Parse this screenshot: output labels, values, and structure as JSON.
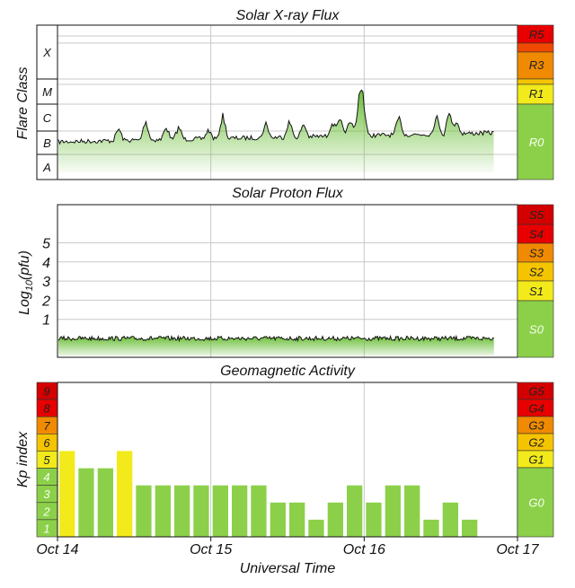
{
  "colors": {
    "green": "#8cd04a",
    "yellow": "#f2ea1a",
    "amber": "#f5c400",
    "orange": "#f08a00",
    "orange_red": "#f04a00",
    "red": "#e80000",
    "dark_red": "#d40000",
    "flux_line": "#111111",
    "grid": "#c8c8c8"
  },
  "xray_panel": {
    "title": "Solar X-ray Flux",
    "ylabel": "Flare Class",
    "class_labels": [
      "X",
      "M",
      "C",
      "B",
      "A"
    ],
    "scale": [
      {
        "label": "R5",
        "color": "#e80000"
      },
      {
        "label": "R3",
        "color": "#f08a00"
      },
      {
        "label": "R1",
        "color": "#f2ea1a"
      },
      {
        "label": "R0",
        "color": "#8cd04a"
      }
    ]
  },
  "proton_panel": {
    "title": "Solar Proton Flux",
    "ylabel_main": "Log",
    "ylabel_sub": "10",
    "ylabel_unit": "(pfu)",
    "tick_labels": [
      "5",
      "4",
      "3",
      "2",
      "1"
    ],
    "scale": [
      {
        "label": "S5",
        "color": "#d40000"
      },
      {
        "label": "S4",
        "color": "#e80000"
      },
      {
        "label": "S3",
        "color": "#f08a00"
      },
      {
        "label": "S2",
        "color": "#f5c400"
      },
      {
        "label": "S1",
        "color": "#f2ea1a"
      },
      {
        "label": "S0",
        "color": "#8cd04a"
      }
    ]
  },
  "kp_panel": {
    "title": "Geomagnetic Activity",
    "ylabel": "Kp index",
    "level_labels": [
      "9",
      "8",
      "7",
      "6",
      "5",
      "4",
      "3",
      "2",
      "1"
    ],
    "level_colors": [
      "#d40000",
      "#e80000",
      "#f08a00",
      "#f5c400",
      "#f2ea1a",
      "#8cd04a",
      "#8cd04a",
      "#8cd04a",
      "#8cd04a"
    ],
    "scale": [
      {
        "label": "G5",
        "color": "#d40000"
      },
      {
        "label": "G4",
        "color": "#e80000"
      },
      {
        "label": "G3",
        "color": "#f08a00"
      },
      {
        "label": "G2",
        "color": "#f5c400"
      },
      {
        "label": "G1",
        "color": "#f2ea1a"
      },
      {
        "label": "G0",
        "color": "#8cd04a"
      }
    ]
  },
  "x_axis": {
    "ticks": [
      "Oct 14",
      "Oct 15",
      "Oct 16",
      "Oct 17"
    ],
    "xlabel": "Universal Time"
  },
  "chart_data": [
    {
      "type": "area",
      "title": "Solar X-ray Flux",
      "ylabel": "Flare Class",
      "xlim": [
        "Oct 14",
        "Oct 17"
      ],
      "x_days": [
        0.0,
        0.25,
        0.5,
        0.75,
        1.0,
        1.25,
        1.5,
        1.75,
        2.0,
        2.25,
        2.5,
        2.85
      ],
      "y_class": [
        "B",
        "B",
        "B",
        "B",
        "B",
        "B",
        "B",
        "B",
        "C",
        "B",
        "B",
        "B"
      ]
    },
    {
      "type": "area",
      "title": "Solar Proton Flux",
      "ylabel": "Log10(pfu)",
      "xlim": [
        "Oct 14",
        "Oct 17"
      ],
      "y_range": [
        -1,
        6
      ],
      "x_days": [
        0.0,
        0.5,
        1.0,
        1.5,
        2.0,
        2.5,
        2.85
      ],
      "values": [
        0.0,
        0.0,
        0.0,
        0.0,
        0.0,
        0.0,
        0.0
      ]
    },
    {
      "type": "bar",
      "title": "Geomagnetic Activity",
      "ylabel": "Kp index",
      "ylim": [
        0,
        9
      ],
      "interval_hours": 3,
      "values": [
        5,
        4,
        4,
        5,
        3,
        3,
        3,
        3,
        3,
        3,
        3,
        2,
        2,
        1,
        2,
        3,
        2,
        3,
        3,
        1,
        2,
        1
      ]
    }
  ]
}
